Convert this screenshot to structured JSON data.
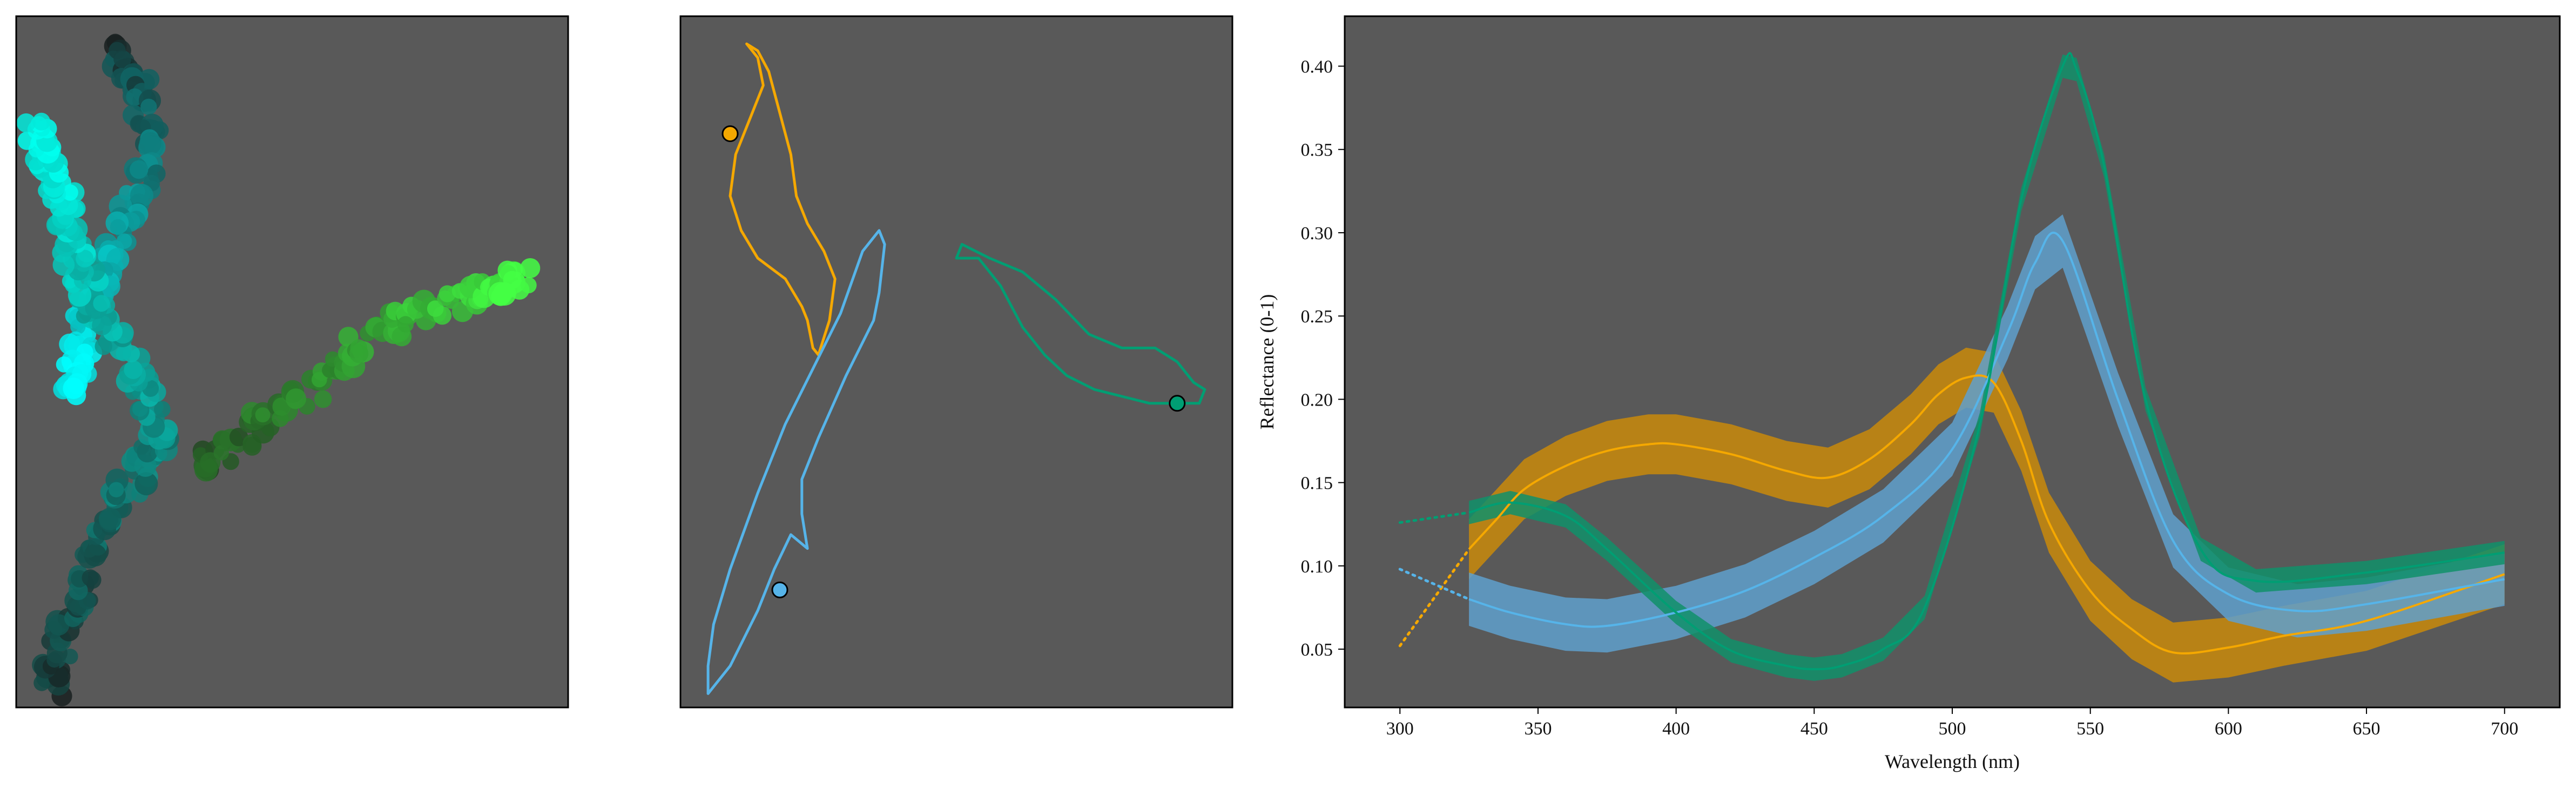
{
  "chart_data": [
    {
      "type": "scatter",
      "title": "",
      "xlabel": "",
      "ylabel": "",
      "axes_visible": false,
      "background": "#595959",
      "series": [
        {
          "name": "",
          "color_from": "#1a1a1a",
          "color_to": "#00ffff",
          "path": [
            [
              0.18,
              0.96
            ],
            [
              0.22,
              0.9
            ],
            [
              0.25,
              0.83
            ],
            [
              0.23,
              0.76
            ],
            [
              0.19,
              0.69
            ],
            [
              0.16,
              0.62
            ],
            [
              0.13,
              0.56
            ],
            [
              0.11,
              0.5
            ],
            [
              0.1,
              0.45
            ]
          ]
        },
        {
          "name": "",
          "color_from": "#1a1a1a",
          "color_to": "#00ffee",
          "path": [
            [
              0.06,
              0.03
            ],
            [
              0.08,
              0.1
            ],
            [
              0.12,
              0.18
            ],
            [
              0.16,
              0.27
            ],
            [
              0.22,
              0.34
            ],
            [
              0.26,
              0.4
            ],
            [
              0.23,
              0.47
            ],
            [
              0.16,
              0.55
            ],
            [
              0.12,
              0.62
            ],
            [
              0.1,
              0.68
            ],
            [
              0.08,
              0.74
            ],
            [
              0.05,
              0.8
            ],
            [
              0.03,
              0.84
            ]
          ]
        },
        {
          "name": "",
          "color_from": "#1f3d1f",
          "color_to": "#44ff44",
          "path": [
            [
              0.33,
              0.35
            ],
            [
              0.42,
              0.4
            ],
            [
              0.52,
              0.45
            ],
            [
              0.62,
              0.52
            ],
            [
              0.72,
              0.57
            ],
            [
              0.82,
              0.6
            ],
            [
              0.88,
              0.61
            ],
            [
              0.92,
              0.62
            ]
          ]
        }
      ]
    },
    {
      "type": "line",
      "title": "",
      "xlabel": "",
      "ylabel": "",
      "axes_visible": false,
      "background": "#595959",
      "series": [
        {
          "name": "",
          "color": "#f5a800",
          "outline": [
            [
              0.12,
              0.96
            ],
            [
              0.14,
              0.94
            ],
            [
              0.15,
              0.9
            ],
            [
              0.13,
              0.86
            ],
            [
              0.1,
              0.8
            ],
            [
              0.09,
              0.74
            ],
            [
              0.11,
              0.69
            ],
            [
              0.14,
              0.65
            ],
            [
              0.19,
              0.62
            ],
            [
              0.22,
              0.58
            ],
            [
              0.23,
              0.56
            ],
            [
              0.24,
              0.52
            ],
            [
              0.25,
              0.51
            ],
            [
              0.27,
              0.56
            ],
            [
              0.28,
              0.62
            ],
            [
              0.26,
              0.66
            ],
            [
              0.23,
              0.7
            ],
            [
              0.21,
              0.74
            ],
            [
              0.2,
              0.8
            ],
            [
              0.18,
              0.86
            ],
            [
              0.16,
              0.92
            ],
            [
              0.14,
              0.95
            ]
          ],
          "marker": [
            0.09,
            0.83
          ]
        },
        {
          "name": "",
          "color": "#56b4e9",
          "outline": [
            [
              0.05,
              0.02
            ],
            [
              0.09,
              0.06
            ],
            [
              0.14,
              0.14
            ],
            [
              0.17,
              0.2
            ],
            [
              0.2,
              0.25
            ],
            [
              0.23,
              0.23
            ],
            [
              0.22,
              0.28
            ],
            [
              0.22,
              0.33
            ],
            [
              0.25,
              0.39
            ],
            [
              0.3,
              0.48
            ],
            [
              0.35,
              0.56
            ],
            [
              0.36,
              0.6
            ],
            [
              0.37,
              0.67
            ],
            [
              0.36,
              0.69
            ],
            [
              0.33,
              0.66
            ],
            [
              0.29,
              0.57
            ],
            [
              0.24,
              0.49
            ],
            [
              0.19,
              0.41
            ],
            [
              0.14,
              0.31
            ],
            [
              0.09,
              0.2
            ],
            [
              0.06,
              0.12
            ],
            [
              0.05,
              0.06
            ]
          ],
          "marker": [
            0.18,
            0.17
          ]
        },
        {
          "name": "",
          "color": "#009e73",
          "outline": [
            [
              0.5,
              0.65
            ],
            [
              0.54,
              0.65
            ],
            [
              0.58,
              0.61
            ],
            [
              0.62,
              0.55
            ],
            [
              0.66,
              0.51
            ],
            [
              0.7,
              0.48
            ],
            [
              0.75,
              0.46
            ],
            [
              0.8,
              0.45
            ],
            [
              0.85,
              0.44
            ],
            [
              0.89,
              0.44
            ],
            [
              0.94,
              0.44
            ],
            [
              0.95,
              0.46
            ],
            [
              0.93,
              0.47
            ],
            [
              0.9,
              0.5
            ],
            [
              0.86,
              0.52
            ],
            [
              0.8,
              0.52
            ],
            [
              0.74,
              0.54
            ],
            [
              0.68,
              0.59
            ],
            [
              0.62,
              0.63
            ],
            [
              0.56,
              0.65
            ],
            [
              0.51,
              0.67
            ]
          ],
          "marker": [
            0.9,
            0.44
          ]
        }
      ]
    },
    {
      "type": "line",
      "title": "",
      "xlabel": "Wavelength (nm)",
      "ylabel": "Reflectance (0-1)",
      "xlim": [
        280,
        720
      ],
      "ylim": [
        0.015,
        0.43
      ],
      "xticks": [
        300,
        350,
        400,
        450,
        500,
        550,
        600,
        650,
        700
      ],
      "yticks": [
        0.05,
        0.1,
        0.15,
        0.2,
        0.25,
        0.3,
        0.35,
        0.4
      ],
      "ytick_labels": [
        "0.05",
        "0.10",
        "0.15",
        "0.20",
        "0.25",
        "0.30",
        "0.35",
        "0.40"
      ],
      "grid": false,
      "background": "#595959",
      "band_halfwidth": {
        "orange": 0.018,
        "blue": 0.016,
        "green": 0.007
      },
      "series": [
        {
          "name": "",
          "color": "#f5a800",
          "band_color": "#c98a0a",
          "x": [
            325,
            335,
            345,
            360,
            375,
            390,
            400,
            420,
            440,
            455,
            470,
            485,
            495,
            505,
            515,
            525,
            535,
            550,
            565,
            580,
            600,
            620,
            650,
            700
          ],
          "y": [
            0.11,
            0.128,
            0.146,
            0.16,
            0.169,
            0.173,
            0.173,
            0.167,
            0.157,
            0.153,
            0.164,
            0.185,
            0.203,
            0.213,
            0.21,
            0.175,
            0.126,
            0.085,
            0.062,
            0.048,
            0.051,
            0.058,
            0.067,
            0.095
          ],
          "extrap_x": [
            300,
            325
          ],
          "extrap_y": [
            0.052,
            0.11
          ]
        },
        {
          "name": "",
          "color": "#56b4e9",
          "band_color": "#5fa0cc",
          "x": [
            325,
            340,
            360,
            375,
            400,
            425,
            450,
            475,
            500,
            520,
            530,
            540,
            560,
            580,
            600,
            625,
            650,
            700
          ],
          "y": [
            0.08,
            0.072,
            0.065,
            0.064,
            0.072,
            0.085,
            0.105,
            0.13,
            0.17,
            0.24,
            0.282,
            0.295,
            0.2,
            0.115,
            0.083,
            0.073,
            0.077,
            0.092
          ],
          "extrap_x": [
            300,
            325
          ],
          "extrap_y": [
            0.098,
            0.08
          ]
        },
        {
          "name": "",
          "color": "#009e73",
          "band_color": "#10916a",
          "x": [
            325,
            340,
            360,
            375,
            400,
            420,
            440,
            450,
            460,
            475,
            490,
            510,
            525,
            540,
            545,
            555,
            570,
            590,
            610,
            650,
            700
          ],
          "y": [
            0.132,
            0.138,
            0.13,
            0.11,
            0.072,
            0.049,
            0.04,
            0.038,
            0.04,
            0.05,
            0.075,
            0.185,
            0.32,
            0.4,
            0.398,
            0.34,
            0.2,
            0.11,
            0.091,
            0.096,
            0.108
          ],
          "extrap_x": [
            300,
            325
          ],
          "extrap_y": [
            0.126,
            0.132
          ]
        }
      ]
    }
  ]
}
